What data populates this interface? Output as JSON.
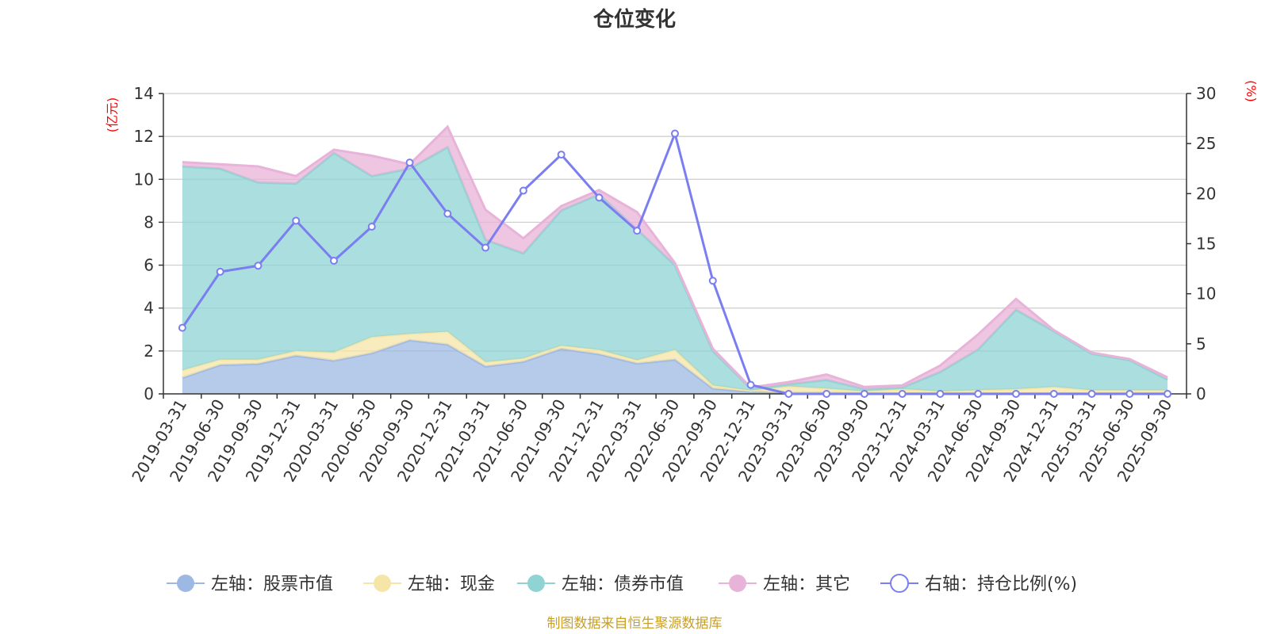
{
  "chart_data": {
    "type": "area",
    "title": "仓位变化",
    "source": "制图数据来自恒生聚源数据库",
    "left_axis_unit": "(亿元)",
    "right_axis_unit": "(%)",
    "left_ylim": [
      0,
      14
    ],
    "left_ticks": [
      "0",
      "2",
      "4",
      "6",
      "8",
      "10",
      "12",
      "14"
    ],
    "right_ylim": [
      0,
      30
    ],
    "right_ticks": [
      "0",
      "5",
      "10",
      "15",
      "20",
      "25",
      "30"
    ],
    "categories": [
      "2019-03-31",
      "2019-06-30",
      "2019-09-30",
      "2019-12-31",
      "2020-03-31",
      "2020-06-30",
      "2020-09-30",
      "2020-12-31",
      "2021-03-31",
      "2021-06-30",
      "2021-09-30",
      "2021-12-31",
      "2022-03-31",
      "2022-06-30",
      "2022-09-30",
      "2022-12-31",
      "2023-03-31",
      "2023-06-30",
      "2023-09-30",
      "2023-12-31",
      "2024-03-31",
      "2024-06-30",
      "2024-09-30",
      "2024-12-31",
      "2025-03-31",
      "2025-06-30",
      "2025-09-30"
    ],
    "series": [
      {
        "name": "左轴：股票市值",
        "axis": "left",
        "color": "#9db8e3",
        "values": [
          0.75,
          1.35,
          1.4,
          1.78,
          1.55,
          1.9,
          2.5,
          2.3,
          1.28,
          1.5,
          2.1,
          1.85,
          1.42,
          1.6,
          0.25,
          0.1,
          0.05,
          0.05,
          0.02,
          0.02,
          0.02,
          0.02,
          0.02,
          0.02,
          0.02,
          0.02,
          0.02
        ]
      },
      {
        "name": "左轴：现金",
        "axis": "left",
        "color": "#f5e6a8",
        "values": [
          0.35,
          0.25,
          0.2,
          0.22,
          0.38,
          0.75,
          0.3,
          0.6,
          0.2,
          0.15,
          0.15,
          0.2,
          0.15,
          0.45,
          0.15,
          0.05,
          0.3,
          0.2,
          0.1,
          0.2,
          0.1,
          0.15,
          0.2,
          0.3,
          0.15,
          0.15,
          0.15
        ]
      },
      {
        "name": "左轴：债券市值",
        "axis": "left",
        "color": "#8fd3d3",
        "values": [
          9.5,
          8.9,
          8.25,
          7.8,
          9.3,
          7.5,
          7.7,
          8.6,
          5.7,
          4.9,
          6.3,
          7.25,
          6.1,
          3.95,
          1.6,
          0.1,
          0.1,
          0.4,
          0.1,
          0.08,
          0.9,
          1.9,
          3.7,
          2.6,
          1.7,
          1.4,
          0.5
        ]
      },
      {
        "name": "左轴：其它",
        "axis": "left",
        "color": "#e8b3d8",
        "values": [
          0.2,
          0.2,
          0.75,
          0.35,
          0.15,
          0.95,
          0.2,
          0.95,
          1.4,
          0.7,
          0.2,
          0.2,
          0.8,
          0.1,
          0.1,
          0.05,
          0.1,
          0.25,
          0.1,
          0.1,
          0.3,
          0.7,
          0.5,
          0.05,
          0.05,
          0.05,
          0.1
        ]
      },
      {
        "name": "右轴：持仓比例(%)",
        "axis": "right",
        "color": "#7a7ef0",
        "values": [
          6.6,
          12.2,
          12.8,
          17.3,
          13.3,
          16.7,
          23.1,
          18,
          14.6,
          20.3,
          23.9,
          19.6,
          16.3,
          26,
          11.3,
          0.9,
          0,
          0,
          0,
          0,
          0,
          0,
          0,
          0,
          0,
          0,
          0
        ]
      }
    ]
  }
}
